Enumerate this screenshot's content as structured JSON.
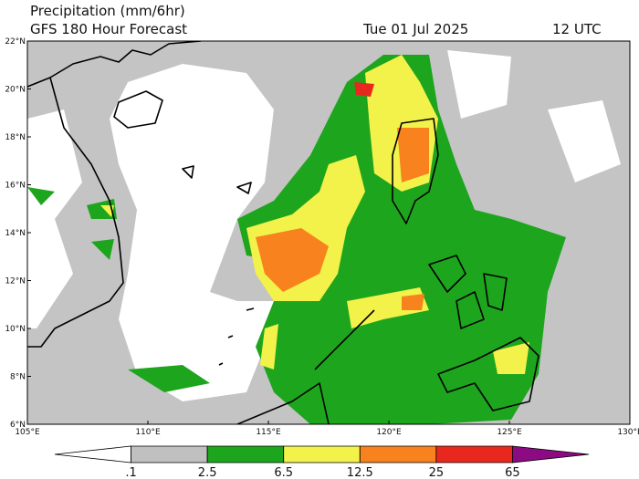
{
  "header": {
    "title": "Precipitation (mm/6hr)",
    "subtitle": "GFS 180 Hour Forecast",
    "date": "Tue 01 Jul 2025",
    "time": "12 UTC"
  },
  "lat_labels": [
    "6°N",
    "8°N",
    "10°N",
    "12°N",
    "14°N",
    "16°N",
    "18°N",
    "20°N",
    "22°N"
  ],
  "lon_labels": [
    "105°E",
    "110°E",
    "115°E",
    "120°E",
    "125°E",
    "130°E"
  ],
  "colorbar": {
    "labels": [
      ".1",
      "2.5",
      "6.5",
      "12.5",
      "25",
      "65"
    ],
    "colors": [
      "#ffffff",
      "#c0c0c0",
      "#1ea51e",
      "#f2f24a",
      "#f7821e",
      "#e8281e",
      "#8c0a82"
    ]
  }
}
